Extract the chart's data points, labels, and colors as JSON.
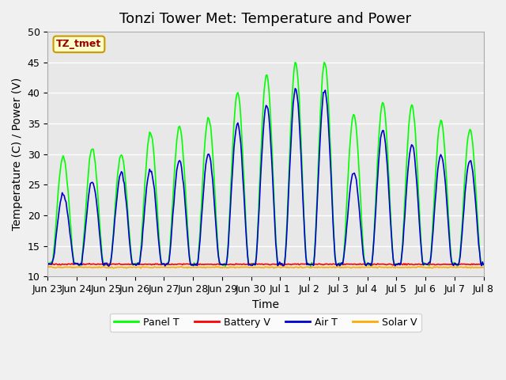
{
  "title": "Tonzi Tower Met: Temperature and Power",
  "xlabel": "Time",
  "ylabel": "Temperature (C) / Power (V)",
  "ylim": [
    10,
    50
  ],
  "legend_label": "TZ_tmet",
  "legend_entries": [
    "Panel T",
    "Battery V",
    "Air T",
    "Solar V"
  ],
  "legend_colors": [
    "#00ff00",
    "#ff0000",
    "#0000cc",
    "#ffaa00"
  ],
  "plot_bg_color": "#e8e8e8",
  "title_fontsize": 13,
  "axis_fontsize": 10,
  "tick_fontsize": 9,
  "x_tick_labels": [
    "Jun 23",
    "Jun 24",
    "Jun 25",
    "Jun 26",
    "Jun 27",
    "Jun 28",
    "Jun 29",
    "Jun 30",
    "Jul 1",
    "Jul 2",
    "Jul 3",
    "Jul 4",
    "Jul 5",
    "Jul 6",
    "Jul 7",
    "Jul 8"
  ],
  "panel_peaks": [
    29.5,
    31,
    30,
    33.5,
    34.5,
    36,
    40,
    43,
    45,
    45,
    36.5,
    38.5,
    38,
    35.5,
    34
  ],
  "air_peaks": [
    23.5,
    25.5,
    27,
    27.5,
    29,
    30,
    35,
    38,
    40.5,
    40.5,
    27,
    34,
    31.5,
    30,
    29
  ],
  "battery_val": 12.0,
  "solar_val": 11.5,
  "n_days": 15,
  "n_pts_per_day": 30,
  "base": 12.0
}
